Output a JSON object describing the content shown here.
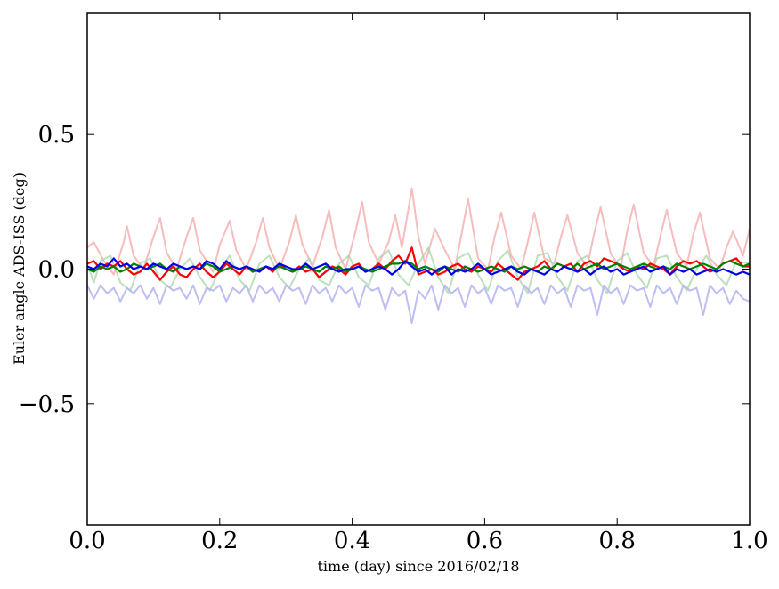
{
  "chart_data": {
    "type": "line",
    "title": "",
    "xlabel": "time (day) since 2016/02/18",
    "ylabel": "Euler angle ADS-ISS (deg)",
    "xlim": [
      0.0,
      1.0
    ],
    "ylim": [
      -0.95,
      0.95
    ],
    "grid": false,
    "legend": "none",
    "x_ticks": [
      {
        "value": 0.0,
        "label": "0.0"
      },
      {
        "value": 0.2,
        "label": "0.2"
      },
      {
        "value": 0.4,
        "label": "0.4"
      },
      {
        "value": 0.6,
        "label": "0.6"
      },
      {
        "value": 0.8,
        "label": "0.8"
      },
      {
        "value": 1.0,
        "label": "1.0"
      }
    ],
    "y_ticks": [
      {
        "value": -0.5,
        "label": "−0.5"
      },
      {
        "value": 0.0,
        "label": "0.0"
      },
      {
        "value": 0.5,
        "label": "0.5"
      }
    ],
    "series": [
      {
        "color": "#f4a6a6",
        "opacity": 0.75,
        "x": [
          0.0,
          0.01,
          0.025,
          0.04,
          0.055,
          0.06,
          0.07,
          0.085,
          0.1,
          0.11,
          0.12,
          0.135,
          0.15,
          0.16,
          0.17,
          0.19,
          0.2,
          0.215,
          0.225,
          0.24,
          0.255,
          0.265,
          0.275,
          0.29,
          0.305,
          0.315,
          0.325,
          0.34,
          0.355,
          0.365,
          0.375,
          0.39,
          0.405,
          0.415,
          0.425,
          0.44,
          0.455,
          0.465,
          0.475,
          0.49,
          0.5,
          0.51,
          0.525,
          0.54,
          0.555,
          0.565,
          0.575,
          0.59,
          0.605,
          0.615,
          0.625,
          0.64,
          0.655,
          0.665,
          0.675,
          0.69,
          0.705,
          0.715,
          0.725,
          0.74,
          0.755,
          0.765,
          0.775,
          0.79,
          0.805,
          0.815,
          0.825,
          0.84,
          0.855,
          0.865,
          0.875,
          0.89,
          0.905,
          0.915,
          0.925,
          0.94,
          0.955,
          0.965,
          0.975,
          0.99,
          1.0
        ],
        "values": [
          0.08,
          0.1,
          0.03,
          -0.02,
          0.1,
          0.16,
          0.05,
          0.0,
          0.12,
          0.19,
          0.06,
          0.0,
          0.12,
          0.19,
          0.07,
          -0.01,
          0.09,
          0.18,
          0.07,
          0.0,
          0.1,
          0.19,
          0.08,
          0.0,
          0.1,
          0.2,
          0.09,
          0.01,
          0.12,
          0.22,
          0.08,
          0.0,
          0.14,
          0.25,
          0.1,
          0.02,
          0.1,
          0.2,
          0.08,
          0.3,
          0.12,
          0.02,
          0.15,
          0.07,
          0.0,
          0.13,
          0.26,
          0.04,
          0.0,
          0.12,
          0.21,
          0.05,
          0.0,
          0.1,
          0.21,
          0.04,
          0.02,
          0.12,
          0.2,
          0.06,
          0.01,
          0.13,
          0.23,
          0.06,
          0.0,
          0.14,
          0.24,
          0.06,
          0.01,
          0.12,
          0.22,
          0.06,
          0.01,
          0.13,
          0.21,
          0.04,
          0.0,
          0.08,
          0.14,
          0.05,
          0.15
        ]
      },
      {
        "color": "#a8d4a8",
        "opacity": 0.75,
        "x": [
          0.0,
          0.01,
          0.02,
          0.035,
          0.05,
          0.065,
          0.08,
          0.095,
          0.11,
          0.125,
          0.14,
          0.155,
          0.17,
          0.185,
          0.2,
          0.215,
          0.23,
          0.245,
          0.26,
          0.275,
          0.29,
          0.305,
          0.32,
          0.335,
          0.35,
          0.365,
          0.38,
          0.395,
          0.41,
          0.425,
          0.44,
          0.455,
          0.47,
          0.485,
          0.5,
          0.515,
          0.53,
          0.545,
          0.56,
          0.575,
          0.59,
          0.605,
          0.62,
          0.635,
          0.65,
          0.665,
          0.68,
          0.695,
          0.71,
          0.725,
          0.74,
          0.755,
          0.77,
          0.785,
          0.8,
          0.815,
          0.83,
          0.845,
          0.86,
          0.875,
          0.89,
          0.905,
          0.92,
          0.935,
          0.95,
          0.965,
          0.98,
          1.0
        ],
        "values": [
          0.02,
          -0.05,
          0.03,
          0.05,
          -0.05,
          -0.08,
          0.02,
          0.04,
          -0.04,
          -0.07,
          0.0,
          0.04,
          -0.03,
          -0.08,
          0.0,
          0.05,
          -0.04,
          -0.08,
          0.02,
          0.05,
          -0.03,
          -0.07,
          0.0,
          0.04,
          -0.04,
          -0.06,
          0.02,
          0.05,
          -0.03,
          -0.06,
          0.04,
          0.07,
          -0.02,
          -0.06,
          0.02,
          0.08,
          -0.03,
          -0.09,
          0.04,
          0.06,
          -0.02,
          -0.08,
          0.03,
          0.07,
          -0.03,
          -0.09,
          0.05,
          0.06,
          -0.03,
          -0.08,
          0.03,
          0.05,
          -0.04,
          -0.09,
          0.03,
          0.06,
          -0.02,
          -0.07,
          0.04,
          0.05,
          -0.03,
          -0.08,
          0.0,
          0.05,
          -0.02,
          -0.06,
          0.03,
          0.02
        ]
      },
      {
        "color": "#b3b3f0",
        "opacity": 0.85,
        "x": [
          0.0,
          0.01,
          0.02,
          0.03,
          0.04,
          0.05,
          0.06,
          0.07,
          0.08,
          0.09,
          0.1,
          0.11,
          0.12,
          0.13,
          0.14,
          0.15,
          0.16,
          0.17,
          0.18,
          0.19,
          0.2,
          0.21,
          0.22,
          0.23,
          0.24,
          0.25,
          0.26,
          0.27,
          0.28,
          0.29,
          0.3,
          0.31,
          0.32,
          0.33,
          0.34,
          0.35,
          0.36,
          0.37,
          0.38,
          0.39,
          0.4,
          0.41,
          0.42,
          0.43,
          0.44,
          0.45,
          0.46,
          0.47,
          0.48,
          0.49,
          0.5,
          0.51,
          0.52,
          0.53,
          0.54,
          0.55,
          0.56,
          0.57,
          0.58,
          0.59,
          0.6,
          0.61,
          0.62,
          0.63,
          0.64,
          0.65,
          0.66,
          0.67,
          0.68,
          0.69,
          0.7,
          0.71,
          0.72,
          0.73,
          0.74,
          0.75,
          0.76,
          0.77,
          0.78,
          0.79,
          0.8,
          0.81,
          0.82,
          0.83,
          0.84,
          0.85,
          0.86,
          0.87,
          0.88,
          0.89,
          0.9,
          0.91,
          0.92,
          0.93,
          0.94,
          0.95,
          0.96,
          0.97,
          0.98,
          0.99,
          1.0
        ],
        "values": [
          -0.06,
          -0.11,
          -0.06,
          -0.09,
          -0.07,
          -0.12,
          -0.07,
          -0.09,
          -0.06,
          -0.11,
          -0.07,
          -0.13,
          -0.06,
          -0.08,
          -0.07,
          -0.11,
          -0.06,
          -0.13,
          -0.07,
          -0.08,
          -0.06,
          -0.12,
          -0.07,
          -0.09,
          -0.06,
          -0.12,
          -0.06,
          -0.09,
          -0.07,
          -0.12,
          -0.06,
          -0.08,
          -0.07,
          -0.13,
          -0.06,
          -0.09,
          -0.07,
          -0.12,
          -0.06,
          -0.09,
          -0.07,
          -0.14,
          -0.06,
          -0.08,
          -0.07,
          -0.15,
          -0.07,
          -0.1,
          -0.08,
          -0.2,
          -0.08,
          -0.11,
          -0.06,
          -0.15,
          -0.06,
          -0.09,
          -0.07,
          -0.14,
          -0.06,
          -0.09,
          -0.07,
          -0.13,
          -0.06,
          -0.08,
          -0.07,
          -0.14,
          -0.06,
          -0.09,
          -0.07,
          -0.13,
          -0.06,
          -0.09,
          -0.07,
          -0.14,
          -0.06,
          -0.08,
          -0.07,
          -0.17,
          -0.06,
          -0.09,
          -0.07,
          -0.13,
          -0.06,
          -0.08,
          -0.07,
          -0.14,
          -0.06,
          -0.09,
          -0.07,
          -0.13,
          -0.06,
          -0.08,
          -0.07,
          -0.17,
          -0.06,
          -0.09,
          -0.07,
          -0.13,
          -0.08,
          -0.11,
          -0.12
        ]
      },
      {
        "color": "#ff0000",
        "opacity": 1,
        "x": [
          0.0,
          0.01,
          0.02,
          0.03,
          0.04,
          0.05,
          0.06,
          0.07,
          0.08,
          0.09,
          0.1,
          0.11,
          0.12,
          0.13,
          0.14,
          0.15,
          0.16,
          0.17,
          0.18,
          0.19,
          0.2,
          0.21,
          0.22,
          0.23,
          0.24,
          0.25,
          0.26,
          0.27,
          0.28,
          0.29,
          0.3,
          0.31,
          0.32,
          0.33,
          0.34,
          0.35,
          0.36,
          0.37,
          0.38,
          0.39,
          0.4,
          0.41,
          0.42,
          0.43,
          0.44,
          0.45,
          0.46,
          0.47,
          0.48,
          0.49,
          0.5,
          0.51,
          0.52,
          0.53,
          0.54,
          0.55,
          0.56,
          0.57,
          0.58,
          0.59,
          0.6,
          0.61,
          0.62,
          0.63,
          0.64,
          0.65,
          0.66,
          0.67,
          0.68,
          0.69,
          0.7,
          0.71,
          0.72,
          0.73,
          0.74,
          0.75,
          0.76,
          0.77,
          0.78,
          0.79,
          0.8,
          0.81,
          0.82,
          0.83,
          0.84,
          0.85,
          0.86,
          0.87,
          0.88,
          0.89,
          0.9,
          0.91,
          0.92,
          0.93,
          0.94,
          0.95,
          0.96,
          0.97,
          0.98,
          0.99,
          1.0
        ],
        "values": [
          0.02,
          0.03,
          0.0,
          0.02,
          0.01,
          0.03,
          0.0,
          -0.02,
          -0.01,
          0.02,
          -0.01,
          -0.04,
          -0.01,
          0.01,
          -0.02,
          -0.03,
          0.0,
          0.02,
          -0.01,
          -0.03,
          -0.01,
          0.02,
          0.0,
          -0.02,
          0.01,
          -0.01,
          0.0,
          0.01,
          -0.01,
          0.02,
          0.0,
          -0.01,
          0.01,
          -0.01,
          0.0,
          -0.03,
          -0.01,
          0.01,
          0.0,
          -0.02,
          0.01,
          0.02,
          -0.01,
          0.0,
          0.02,
          0.0,
          0.03,
          0.05,
          0.02,
          0.08,
          -0.02,
          -0.01,
          0.0,
          -0.02,
          -0.01,
          0.01,
          0.02,
          0.0,
          -0.01,
          0.01,
          0.0,
          -0.01,
          0.02,
          0.0,
          -0.02,
          -0.04,
          -0.01,
          0.0,
          0.01,
          0.03,
          0.0,
          0.02,
          0.01,
          0.02,
          -0.01,
          0.02,
          0.03,
          0.01,
          0.04,
          0.03,
          0.02,
          0.0,
          -0.01,
          0.01,
          0.0,
          0.02,
          0.01,
          0.0,
          -0.02,
          0.01,
          0.03,
          0.02,
          0.03,
          0.01,
          -0.01,
          0.0,
          0.02,
          0.03,
          0.04,
          0.01,
          0.01
        ]
      },
      {
        "color": "#008000",
        "opacity": 1,
        "x": [
          0.0,
          0.01,
          0.02,
          0.03,
          0.04,
          0.05,
          0.06,
          0.07,
          0.08,
          0.09,
          0.1,
          0.11,
          0.12,
          0.13,
          0.14,
          0.15,
          0.16,
          0.17,
          0.18,
          0.19,
          0.2,
          0.21,
          0.22,
          0.23,
          0.24,
          0.25,
          0.26,
          0.27,
          0.28,
          0.29,
          0.3,
          0.31,
          0.32,
          0.33,
          0.34,
          0.35,
          0.36,
          0.37,
          0.38,
          0.39,
          0.4,
          0.41,
          0.42,
          0.43,
          0.44,
          0.45,
          0.46,
          0.47,
          0.48,
          0.49,
          0.5,
          0.51,
          0.52,
          0.53,
          0.54,
          0.55,
          0.56,
          0.57,
          0.58,
          0.59,
          0.6,
          0.61,
          0.62,
          0.63,
          0.64,
          0.65,
          0.66,
          0.67,
          0.68,
          0.69,
          0.7,
          0.71,
          0.72,
          0.73,
          0.74,
          0.75,
          0.76,
          0.77,
          0.78,
          0.79,
          0.8,
          0.81,
          0.82,
          0.83,
          0.84,
          0.85,
          0.86,
          0.87,
          0.88,
          0.89,
          0.9,
          0.91,
          0.92,
          0.93,
          0.94,
          0.95,
          0.96,
          0.97,
          0.98,
          0.99,
          1.0
        ],
        "values": [
          0.0,
          -0.01,
          0.01,
          0.0,
          0.01,
          -0.01,
          0.0,
          0.02,
          0.01,
          0.0,
          0.01,
          0.02,
          0.0,
          -0.01,
          0.01,
          0.0,
          0.01,
          0.0,
          0.02,
          0.01,
          -0.01,
          0.0,
          0.01,
          0.0,
          0.01,
          -0.01,
          0.0,
          0.01,
          0.0,
          0.01,
          0.0,
          -0.01,
          0.0,
          0.01,
          0.0,
          -0.01,
          0.01,
          0.0,
          0.01,
          -0.01,
          0.0,
          0.01,
          0.0,
          -0.01,
          0.0,
          0.01,
          0.02,
          0.02,
          0.03,
          0.02,
          0.0,
          0.01,
          0.0,
          -0.01,
          0.01,
          0.0,
          -0.01,
          0.01,
          0.0,
          -0.01,
          0.0,
          0.01,
          0.0,
          -0.01,
          0.01,
          0.0,
          0.01,
          0.0,
          -0.01,
          0.01,
          0.0,
          0.02,
          0.01,
          0.0,
          0.02,
          0.0,
          0.01,
          0.02,
          0.0,
          0.01,
          0.02,
          0.01,
          0.0,
          0.01,
          0.02,
          0.01,
          0.0,
          0.01,
          0.0,
          0.02,
          0.01,
          0.0,
          0.01,
          0.02,
          0.01,
          0.0,
          0.02,
          0.03,
          0.02,
          0.01,
          0.02
        ]
      },
      {
        "color": "#0000ee",
        "opacity": 1,
        "x": [
          0.0,
          0.01,
          0.02,
          0.03,
          0.04,
          0.05,
          0.06,
          0.07,
          0.08,
          0.09,
          0.1,
          0.11,
          0.12,
          0.13,
          0.14,
          0.15,
          0.16,
          0.17,
          0.18,
          0.19,
          0.2,
          0.21,
          0.22,
          0.23,
          0.24,
          0.25,
          0.26,
          0.27,
          0.28,
          0.29,
          0.3,
          0.31,
          0.32,
          0.33,
          0.34,
          0.35,
          0.36,
          0.37,
          0.38,
          0.39,
          0.4,
          0.41,
          0.42,
          0.43,
          0.44,
          0.45,
          0.46,
          0.47,
          0.48,
          0.49,
          0.5,
          0.51,
          0.52,
          0.53,
          0.54,
          0.55,
          0.56,
          0.57,
          0.58,
          0.59,
          0.6,
          0.61,
          0.62,
          0.63,
          0.64,
          0.65,
          0.66,
          0.67,
          0.68,
          0.69,
          0.7,
          0.71,
          0.72,
          0.73,
          0.74,
          0.75,
          0.76,
          0.77,
          0.78,
          0.79,
          0.8,
          0.81,
          0.82,
          0.83,
          0.84,
          0.85,
          0.86,
          0.87,
          0.88,
          0.89,
          0.9,
          0.91,
          0.92,
          0.93,
          0.94,
          0.95,
          0.96,
          0.97,
          0.98,
          0.99,
          1.0
        ],
        "values": [
          0.01,
          0.0,
          0.02,
          0.01,
          0.04,
          0.01,
          0.02,
          0.0,
          0.01,
          0.0,
          0.02,
          0.01,
          0.0,
          0.02,
          0.01,
          0.0,
          0.01,
          0.0,
          0.03,
          0.02,
          0.0,
          0.03,
          0.01,
          0.0,
          0.01,
          0.0,
          -0.01,
          0.01,
          0.0,
          0.02,
          0.01,
          0.0,
          0.0,
          0.02,
          0.0,
          0.01,
          0.02,
          0.0,
          -0.01,
          0.0,
          0.0,
          0.01,
          -0.01,
          0.0,
          0.01,
          0.0,
          -0.02,
          0.0,
          0.03,
          0.01,
          -0.01,
          0.0,
          -0.02,
          0.0,
          0.01,
          -0.02,
          0.0,
          -0.01,
          0.0,
          0.02,
          0.0,
          -0.02,
          -0.01,
          0.0,
          0.01,
          -0.01,
          -0.02,
          0.0,
          -0.01,
          -0.02,
          0.0,
          -0.01,
          0.01,
          0.0,
          -0.01,
          0.0,
          -0.02,
          0.0,
          0.01,
          -0.01,
          0.0,
          -0.02,
          -0.01,
          0.0,
          0.01,
          -0.01,
          0.0,
          0.01,
          -0.02,
          0.0,
          -0.01,
          0.0,
          -0.02,
          -0.01,
          0.0,
          -0.01,
          0.0,
          -0.01,
          -0.02,
          -0.01,
          -0.02
        ]
      }
    ]
  }
}
